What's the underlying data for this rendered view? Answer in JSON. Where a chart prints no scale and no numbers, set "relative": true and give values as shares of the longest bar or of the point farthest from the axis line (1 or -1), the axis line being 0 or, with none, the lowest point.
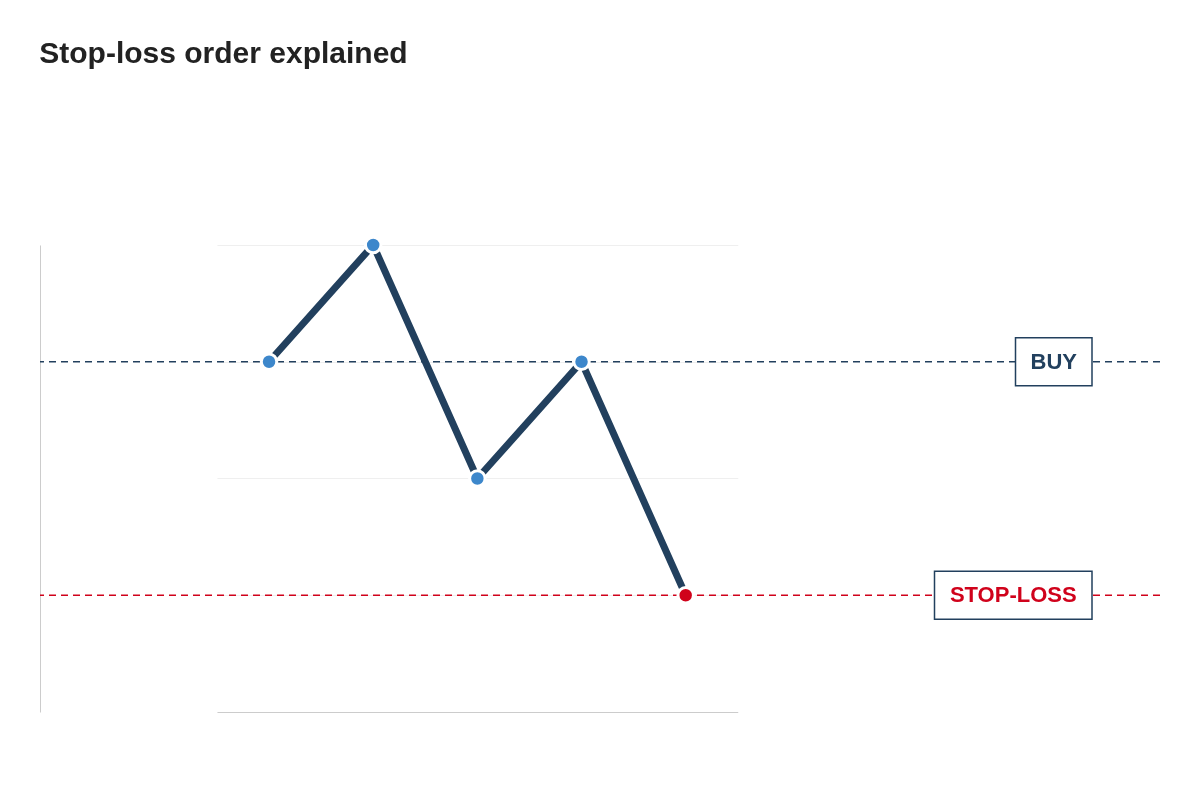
{
  "chart_data": {
    "type": "line",
    "title": "Stop-loss order explained",
    "relative": true,
    "categories": [
      null,
      null,
      null,
      null,
      null
    ],
    "series": [
      {
        "color": "#22405e",
        "colors": [
          "#3d87cb",
          "#3d87cb",
          "#3d87cb",
          "#3d87cb",
          "#d0021b"
        ],
        "values": [
          0.75,
          1,
          0.5,
          0.75,
          0.25
        ]
      }
    ],
    "ref_lines": [
      {
        "axis": "y",
        "value": 0.75,
        "label": "BUY",
        "color": "#22405e",
        "line_style": "dashed"
      },
      {
        "axis": "y",
        "value": 0.25,
        "label": "STOP-LOSS",
        "color": "#d0021b",
        "line_style": "dashed"
      }
    ],
    "marker": "circle",
    "line_style": "solid",
    "grid": "y"
  }
}
